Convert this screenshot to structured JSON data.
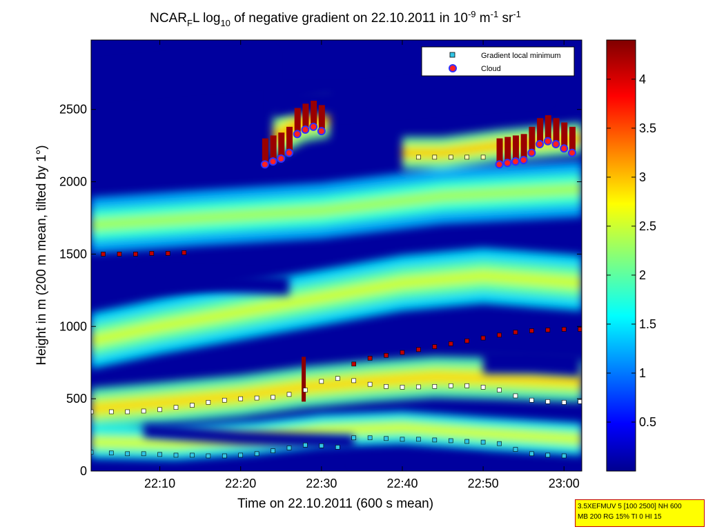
{
  "title": {
    "prefix": "NCAR",
    "prefix_sub": "F",
    "part2": "L log",
    "part2_sub": "10",
    "part3": " of negative gradient on 22.10.2011 in 10",
    "sup1": "-9",
    "part4": " m",
    "sup2": "-1",
    "part5": " sr",
    "sup3": "-1"
  },
  "stamp": {
    "line1": "3.5XEFMUV 5 [100 2500] NH 600",
    "line2": "MB 200 RG 15% TI 0 HI 15"
  },
  "chart_data": {
    "type": "heatmap",
    "xlabel": "Time on 22.10.2011 (600 s mean)",
    "ylabel": "Height in m (200 m mean, tilted by 1°)",
    "x_ticks": [
      "22:10",
      "22:20",
      "22:30",
      "22:40",
      "22:50",
      "23:00"
    ],
    "x_tick_minutes": [
      10,
      20,
      30,
      40,
      50,
      60
    ],
    "xlim_minutes": [
      1.5,
      62.2
    ],
    "y_ticks": [
      "0",
      "500",
      "1000",
      "1500",
      "2000",
      "2500"
    ],
    "y_tick_values": [
      0,
      500,
      1000,
      1500,
      2000,
      2500
    ],
    "ylim": [
      0,
      2980
    ],
    "colorbar": {
      "ticks": [
        "0.5",
        "1",
        "1.5",
        "2",
        "2.5",
        "3",
        "3.5",
        "4"
      ],
      "tick_values": [
        0.5,
        1,
        1.5,
        2,
        2.5,
        3,
        3.5,
        4
      ],
      "range": [
        0,
        4.4
      ],
      "colormap": "jet"
    },
    "legend": {
      "placement": "top-right",
      "entries": [
        "Gradient local minimum",
        "Cloud"
      ]
    },
    "bands": [
      {
        "t": [
          1.5,
          10,
          20,
          28,
          36,
          44,
          52,
          62.2
        ],
        "h": [
          430,
          470,
          520,
          580,
          620,
          650,
          640,
          620
        ],
        "w": 90,
        "v": 2.6
      },
      {
        "t": [
          1.5,
          12,
          22,
          30,
          40,
          50,
          62.2
        ],
        "h": [
          200,
          190,
          230,
          280,
          300,
          260,
          220
        ],
        "w": 70,
        "v": 2.3
      },
      {
        "t": [
          1.5,
          10,
          20,
          30,
          40,
          50,
          62.2
        ],
        "h": [
          900,
          1000,
          1100,
          1200,
          1300,
          1350,
          1300
        ],
        "w": 120,
        "v": 2.2
      },
      {
        "t": [
          1.5,
          15,
          30,
          45,
          62.2
        ],
        "h": [
          1700,
          1750,
          1800,
          1900,
          1950
        ],
        "w": 120,
        "v": 2.0
      },
      {
        "t": [
          40,
          45,
          52,
          62.2
        ],
        "h": [
          2200,
          2200,
          2250,
          2300
        ],
        "w": 70,
        "v": 2.7
      },
      {
        "t": [
          24,
          28,
          31
        ],
        "h": [
          2300,
          2420,
          2450
        ],
        "w": 90,
        "v": 2.8
      }
    ],
    "dark_regions": [
      {
        "t": [
          1.5,
          12,
          24
        ],
        "h": [
          2700,
          2750,
          2800
        ],
        "w": 120
      },
      {
        "t": [
          8,
          18,
          26
        ],
        "h": [
          1320,
          1300,
          1280
        ],
        "w": 80
      },
      {
        "t": [
          50,
          56,
          62
        ],
        "h": [
          760,
          760,
          740
        ],
        "w": 110
      },
      {
        "t": [
          8,
          20,
          34
        ],
        "h": [
          280,
          230,
          200
        ],
        "w": 60
      },
      {
        "t": [
          34,
          42,
          50
        ],
        "h": [
          80,
          70,
          60
        ],
        "w": 40
      },
      {
        "t": [
          24,
          33,
          44,
          58
        ],
        "h": [
          2550,
          2550,
          2600,
          2650
        ],
        "w": 110
      }
    ],
    "series": [
      {
        "name": "Gradient local minimum",
        "color": "#ffffff",
        "x": [
          1.5,
          4,
          6,
          8,
          10,
          12,
          14,
          16,
          18,
          20,
          22,
          24,
          26,
          28,
          30,
          32,
          34,
          36,
          38,
          40,
          42,
          44,
          46,
          48,
          50,
          52,
          54,
          56,
          58,
          60,
          62
        ],
        "y": [
          410,
          410,
          410,
          415,
          425,
          440,
          455,
          475,
          490,
          500,
          505,
          510,
          530,
          560,
          620,
          640,
          625,
          600,
          585,
          580,
          582,
          585,
          590,
          590,
          580,
          560,
          520,
          490,
          480,
          475,
          480
        ]
      },
      {
        "name": "Gradient local minimum",
        "color": "#33c6e6",
        "x": [
          1.5,
          4,
          6,
          8,
          10,
          12,
          14,
          16,
          18,
          20,
          22,
          24,
          26,
          28,
          30,
          32,
          34,
          36,
          38,
          40,
          42,
          44,
          46,
          48,
          50,
          52,
          54,
          56,
          58,
          60
        ],
        "y": [
          130,
          125,
          120,
          120,
          115,
          110,
          110,
          105,
          105,
          110,
          120,
          140,
          160,
          180,
          175,
          165,
          230,
          230,
          225,
          220,
          220,
          215,
          210,
          205,
          200,
          190,
          150,
          120,
          110,
          105
        ]
      },
      {
        "name": "Gradient local minimum",
        "color": "#c00000",
        "x": [
          34,
          36,
          38,
          40,
          42,
          44,
          46,
          48,
          50,
          52,
          54,
          56,
          58,
          60,
          62
        ],
        "y": [
          740,
          780,
          800,
          820,
          840,
          860,
          880,
          900,
          920,
          940,
          960,
          970,
          975,
          980,
          980
        ]
      },
      {
        "name": "Gradient local minimum",
        "color": "#c00000",
        "x": [
          3,
          5,
          7,
          9,
          11,
          13
        ],
        "y": [
          1500,
          1500,
          1500,
          1505,
          1505,
          1510
        ]
      },
      {
        "name": "Gradient local minimum",
        "color": "#ffffaa",
        "x": [
          42,
          44,
          46,
          48,
          50
        ],
        "y": [
          2170,
          2170,
          2170,
          2170,
          2170
        ]
      },
      {
        "name": "Cloud",
        "color": "#ff2020",
        "x": [
          23,
          24,
          25,
          26,
          27,
          28,
          29,
          30,
          52,
          53,
          54,
          55,
          56,
          57,
          58,
          59,
          60,
          61
        ],
        "y": [
          2120,
          2140,
          2160,
          2200,
          2330,
          2360,
          2380,
          2350,
          2120,
          2130,
          2140,
          2150,
          2200,
          2260,
          2280,
          2260,
          2230,
          2200
        ]
      }
    ],
    "annotations": [
      {
        "label": "cloud_spike",
        "t": 27.8,
        "h_from": 480,
        "h_to": 790
      }
    ]
  }
}
